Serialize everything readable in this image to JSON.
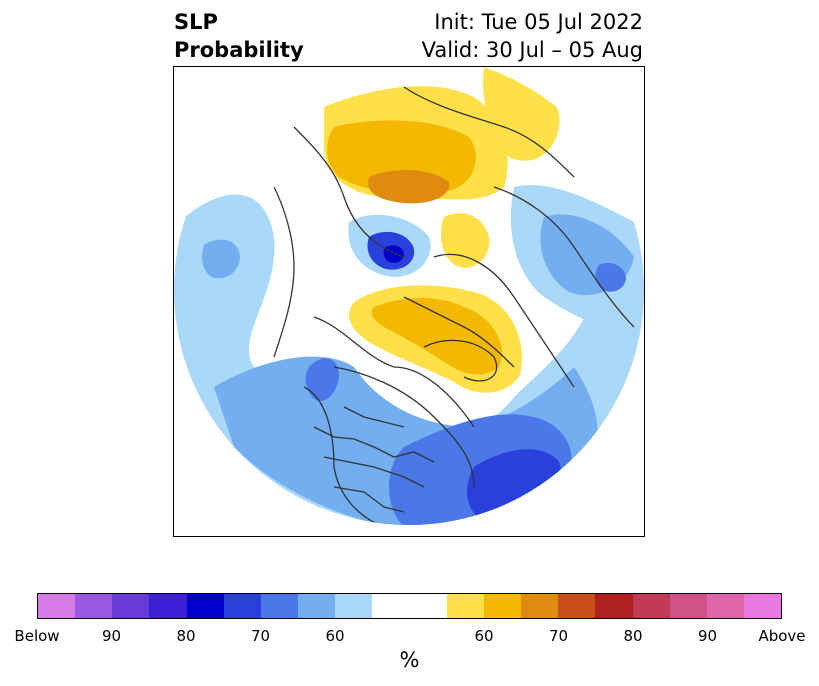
{
  "header": {
    "title_line1": "SLP",
    "title_line2": "Probability",
    "init": "Init: Tue 05 Jul 2022",
    "valid": "Valid: 30 Jul – 05 Aug"
  },
  "colorbar": {
    "label": "%",
    "colors": [
      "#d67ae8",
      "#9a57e0",
      "#6a3ad8",
      "#3a1fd4",
      "#0000cc",
      "#2a3fdc",
      "#4a78e8",
      "#72aef0",
      "#aad8f8",
      "#ffffff",
      "#ffffff",
      "#ffe048",
      "#f4b800",
      "#e08a10",
      "#c85018",
      "#b02020",
      "#c03a58",
      "#d05088",
      "#e064a8",
      "#e878e0"
    ],
    "tick_labels": [
      "Below",
      "90",
      "80",
      "70",
      "60",
      "60",
      "70",
      "80",
      "90",
      "Above"
    ]
  },
  "map": {
    "projection": "north-polar-stereographic",
    "colors": {
      "light_blue": "#aad8f8",
      "mid_blue": "#72aef0",
      "blue": "#4a78e8",
      "dark_blue": "#2a3fdc",
      "navy": "#0000cc",
      "yellow": "#ffe048",
      "gold": "#f4b800",
      "orange": "#e08a10"
    }
  }
}
